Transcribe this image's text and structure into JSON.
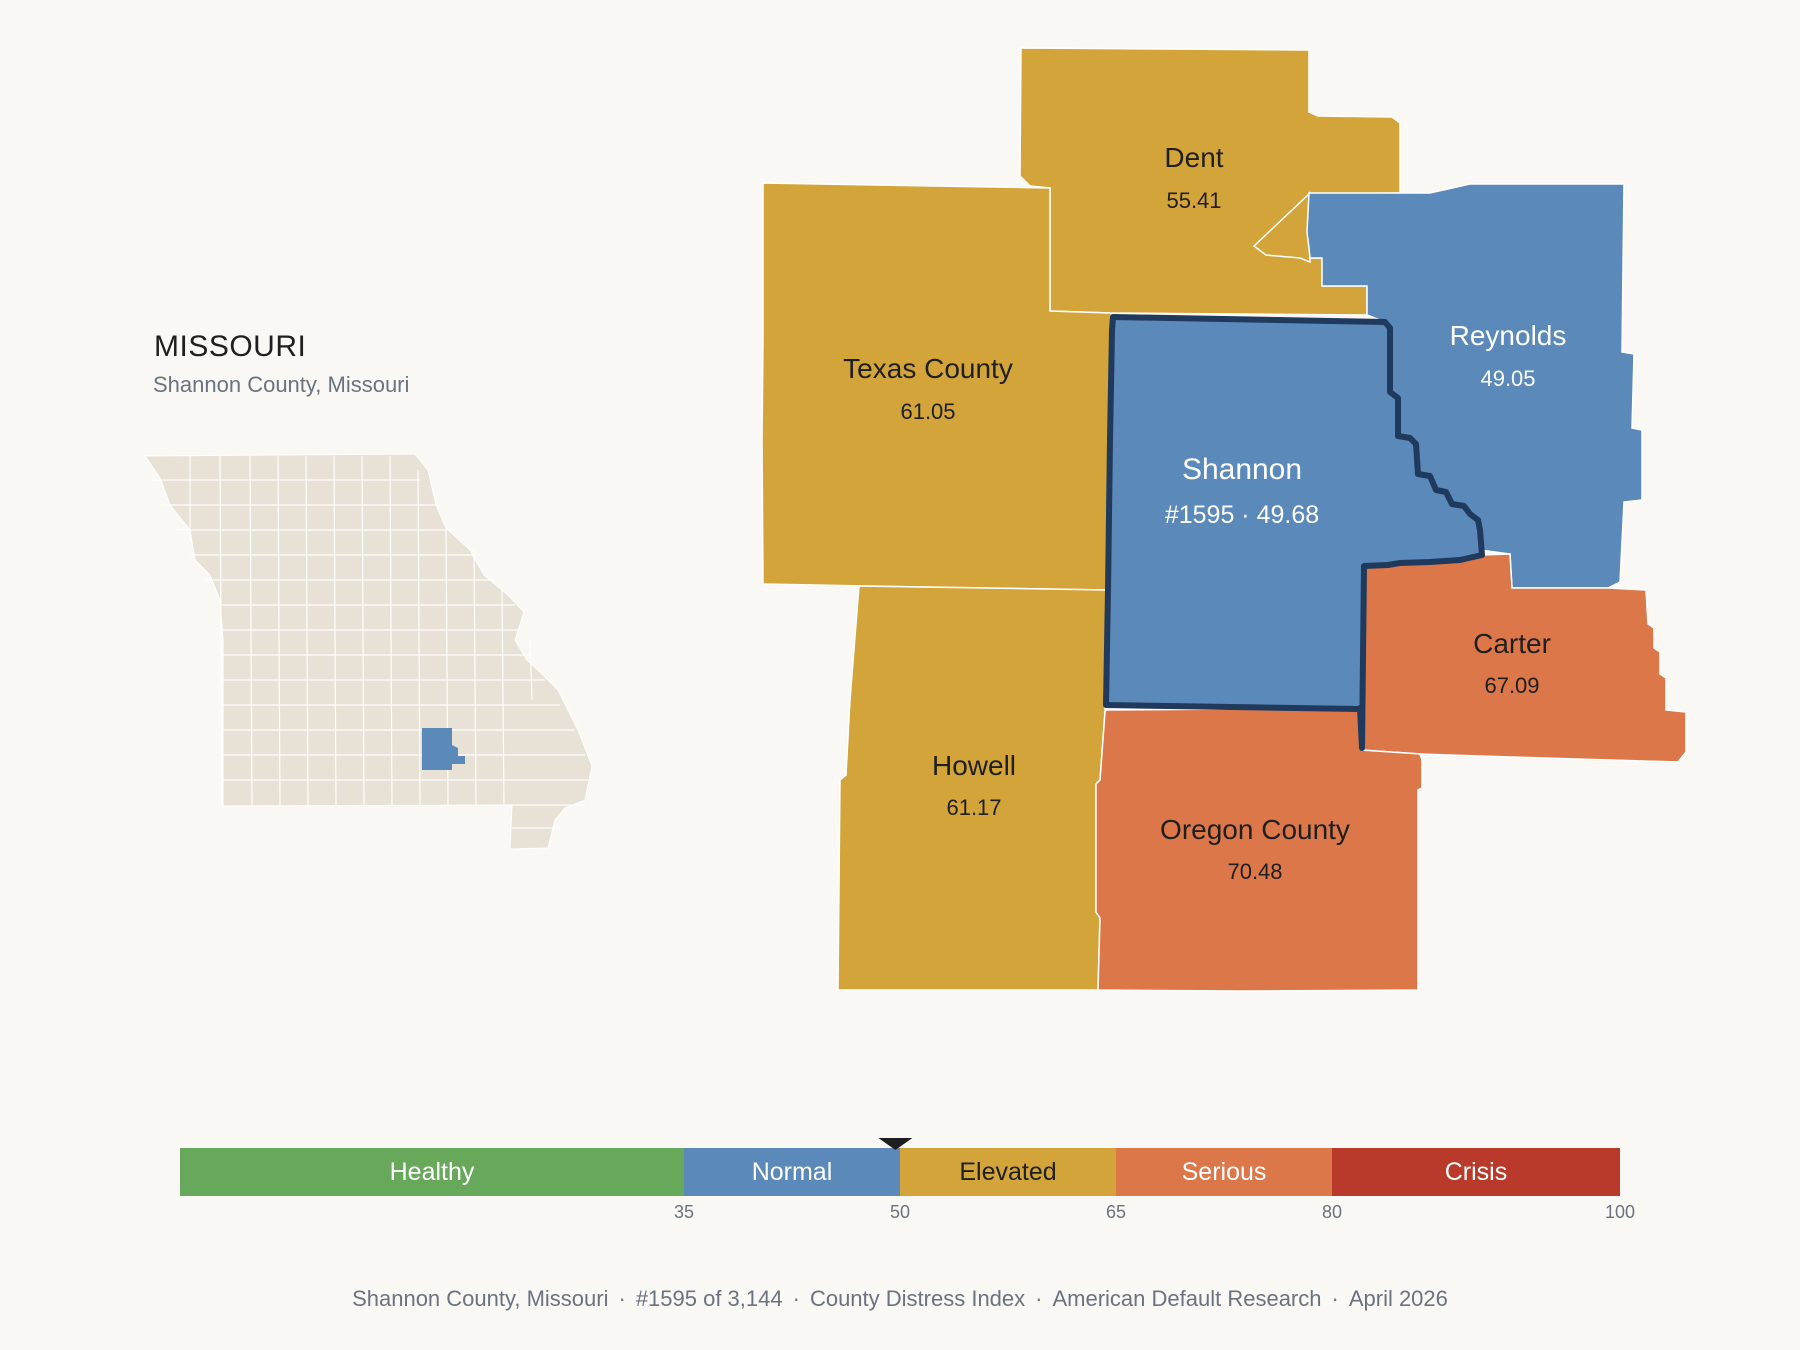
{
  "state": {
    "title": "MISSOURI",
    "subtitle": "Shannon County, Missouri"
  },
  "counties": [
    {
      "id": "dent",
      "name": "Dent",
      "value": "55.41",
      "category": "Elevated"
    },
    {
      "id": "texas",
      "name": "Texas County",
      "value": "61.05",
      "category": "Elevated"
    },
    {
      "id": "reynolds",
      "name": "Reynolds",
      "value": "49.05",
      "category": "Normal"
    },
    {
      "id": "shannon",
      "name": "Shannon",
      "value": "#1595 · 49.68",
      "category": "Normal",
      "highlighted": true
    },
    {
      "id": "carter",
      "name": "Carter",
      "value": "67.09",
      "category": "Serious"
    },
    {
      "id": "howell",
      "name": "Howell",
      "value": "61.17",
      "category": "Elevated"
    },
    {
      "id": "oregon",
      "name": "Oregon County",
      "value": "70.48",
      "category": "Serious"
    }
  ],
  "scale": {
    "min": 0,
    "max": 100,
    "marker_value": 49.68,
    "bands": [
      {
        "label": "Healthy",
        "from": 0,
        "to": 35,
        "color": "#67a85a"
      },
      {
        "label": "Normal",
        "from": 35,
        "to": 50,
        "color": "#5a89ba"
      },
      {
        "label": "Elevated",
        "from": 50,
        "to": 65,
        "color": "#d3a43a"
      },
      {
        "label": "Serious",
        "from": 65,
        "to": 80,
        "color": "#dc774a"
      },
      {
        "label": "Crisis",
        "from": 80,
        "to": 100,
        "color": "#b93a2b"
      }
    ],
    "ticks": [
      "35",
      "50",
      "65",
      "80",
      "100"
    ]
  },
  "colors": {
    "Elevated": "#d3a43a",
    "Normal": "#5a89ba",
    "Serious": "#dc774a",
    "state_fill": "#e8e2d6",
    "highlight_outline": "#1f3a5c"
  },
  "footer": {
    "county": "Shannon County, Missouri",
    "rank": "#1595 of 3,144",
    "index": "County Distress Index",
    "source": "American Default Research",
    "date": "April 2026"
  }
}
